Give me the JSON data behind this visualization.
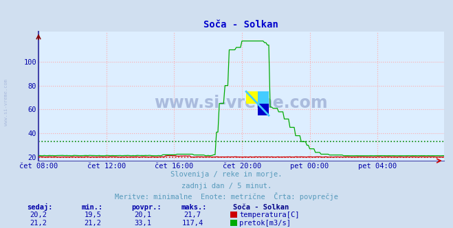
{
  "title": "Soča - Solkan",
  "title_color": "#0000cc",
  "bg_color": "#d0dff0",
  "plot_bg_color": "#ddeeff",
  "grid_color": "#ffaaaa",
  "grid_style": ":",
  "spine_color": "#8888cc",
  "watermark": "www.si-vreme.com",
  "watermark_color": "#aabbdd",
  "subtitle_lines": [
    "Slovenija / reke in morje.",
    "zadnji dan / 5 minut.",
    "Meritve: minimalne  Enote: metrične  Črta: povprečje"
  ],
  "subtitle_color": "#5599bb",
  "tick_color": "#0000aa",
  "xticklabels": [
    "čet 08:00",
    "čet 12:00",
    "čet 16:00",
    "čet 20:00",
    "pet 00:00",
    "pet 04:00"
  ],
  "xtick_positions": [
    0,
    48,
    96,
    144,
    192,
    240
  ],
  "yticks_left": [
    20,
    40,
    60,
    80,
    100
  ],
  "ymin": 17,
  "ymax": 125,
  "total_points": 288,
  "avg_temp": 20.1,
  "avg_flow": 33.1,
  "temp_color": "#cc0000",
  "flow_color": "#00aa00",
  "avg_temp_color": "#dd2222",
  "avg_flow_color": "#008800",
  "legend_header": "Soča - Solkan",
  "legend_header_color": "#000088",
  "legend_items": [
    {
      "label": "temperatura[C]",
      "color": "#cc0000",
      "val_sedaj": "20,2",
      "val_min": "19,5",
      "val_povpr": "20,1",
      "val_maks": "21,7"
    },
    {
      "label": "pretok[m3/s]",
      "color": "#00aa00",
      "val_sedaj": "21,2",
      "val_min": "21,2",
      "val_povpr": "33,1",
      "val_maks": "117,4"
    }
  ],
  "table_headers": [
    "sedaj:",
    "min.:",
    "povpr.:",
    "maks.:"
  ],
  "table_color": "#0000aa"
}
